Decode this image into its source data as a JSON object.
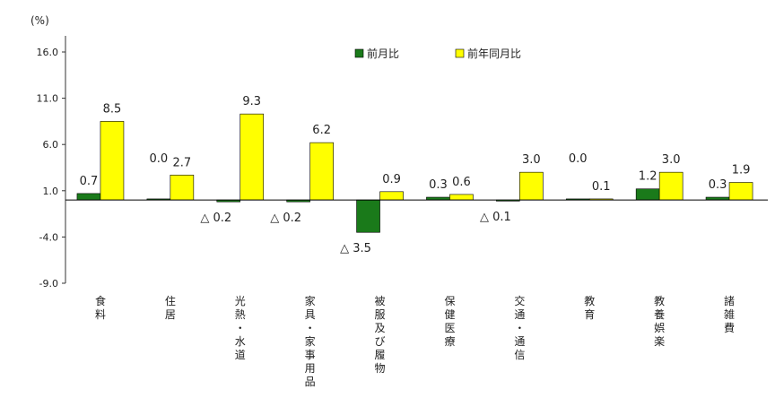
{
  "chart_data": {
    "type": "bar",
    "unit_label": "(%)",
    "categories": [
      "食料",
      "住居",
      "光熱・水道",
      "家具・家事用品",
      "被服及び履物",
      "保健医療",
      "交通・通信",
      "教育",
      "教養娯楽",
      "諸雑費"
    ],
    "series": [
      {
        "name": "前月比",
        "color": "#1a7a1a",
        "values": [
          0.7,
          0.0,
          -0.2,
          -0.2,
          -3.5,
          0.3,
          -0.1,
          0.0,
          1.2,
          0.3
        ],
        "labels": [
          "0.7",
          "0.0",
          "△ 0.2",
          "△ 0.2",
          "△ 3.5",
          "0.3",
          "△ 0.1",
          "0.0",
          "1.2",
          "0.3"
        ]
      },
      {
        "name": "前年同月比",
        "color": "#ffff00",
        "values": [
          8.5,
          2.7,
          9.3,
          6.2,
          0.9,
          0.6,
          3.0,
          0.1,
          3.0,
          1.9
        ],
        "labels": [
          "8.5",
          "2.7",
          "9.3",
          "6.2",
          "0.9",
          "0.6",
          "3.0",
          "0.1",
          "3.0",
          "1.9"
        ]
      }
    ],
    "yticks": [
      "16.0",
      "11.0",
      "6.0",
      "1.0",
      "-4.0",
      "-9.0"
    ],
    "ylim": [
      -9,
      16
    ],
    "legend_position": "top-center",
    "grid": false
  }
}
